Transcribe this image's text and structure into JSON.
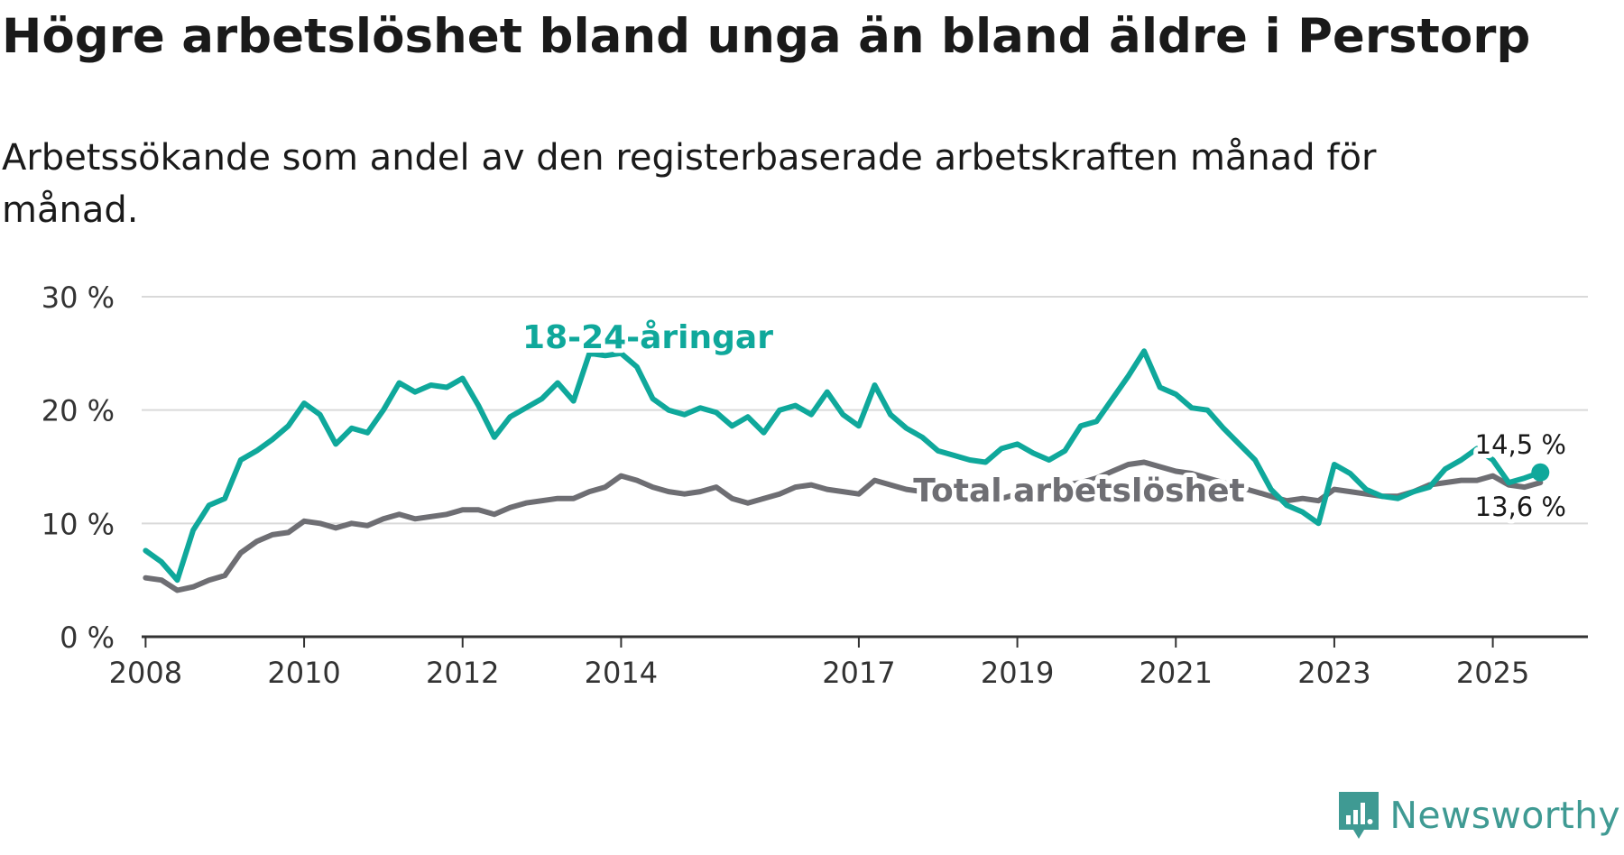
{
  "title": "Högre arbetslöshet bland unga än bland äldre i Perstorp",
  "subtitle": "Arbetssökande som andel av den registerbaserade arbetskraften månad för månad.",
  "brand": {
    "name": "Newsworthy"
  },
  "colors": {
    "youth": "#0fa89b",
    "total": "#6e6e73",
    "grid": "#d9d9d9",
    "axis": "#333333"
  },
  "chart_data": {
    "type": "line",
    "title": "Högre arbetslöshet bland unga än bland äldre i Perstorp",
    "subtitle": "Arbetssökande som andel av den registerbaserade arbetskraften månad för månad.",
    "xlabel": "",
    "ylabel": "",
    "xlim": [
      2007.95,
      2026.2
    ],
    "ylim": [
      0,
      30
    ],
    "grid": true,
    "legend": "inline labels",
    "xticks": [
      2008,
      2010,
      2012,
      2014,
      2017,
      2019,
      2021,
      2023,
      2025
    ],
    "xtick_labels": [
      "2008",
      "2010",
      "2012",
      "2014",
      "2017",
      "2019",
      "2021",
      "2023",
      "2025"
    ],
    "yticks": [
      0,
      10,
      20,
      30
    ],
    "ytick_labels": [
      "0 %",
      "10 %",
      "20 %",
      "30 %"
    ],
    "series": [
      {
        "name": "18-24-åringar",
        "key": "youth",
        "label": "18-24-åringar",
        "end_label": "14,5 %",
        "end_value": 14.5,
        "points": [
          [
            2008.0,
            7.6
          ],
          [
            2008.2,
            6.6
          ],
          [
            2008.4,
            5.0
          ],
          [
            2008.6,
            9.4
          ],
          [
            2008.8,
            11.6
          ],
          [
            2009.0,
            12.2
          ],
          [
            2009.2,
            15.6
          ],
          [
            2009.4,
            16.4
          ],
          [
            2009.6,
            17.4
          ],
          [
            2009.8,
            18.6
          ],
          [
            2010.0,
            20.6
          ],
          [
            2010.2,
            19.6
          ],
          [
            2010.4,
            17.0
          ],
          [
            2010.6,
            18.4
          ],
          [
            2010.8,
            18.0
          ],
          [
            2011.0,
            20.0
          ],
          [
            2011.2,
            22.4
          ],
          [
            2011.4,
            21.6
          ],
          [
            2011.6,
            22.2
          ],
          [
            2011.8,
            22.0
          ],
          [
            2012.0,
            22.8
          ],
          [
            2012.2,
            20.4
          ],
          [
            2012.4,
            17.6
          ],
          [
            2012.6,
            19.4
          ],
          [
            2012.8,
            20.2
          ],
          [
            2013.0,
            21.0
          ],
          [
            2013.2,
            22.4
          ],
          [
            2013.4,
            20.8
          ],
          [
            2013.6,
            25.0
          ],
          [
            2013.8,
            24.8
          ],
          [
            2014.0,
            25.0
          ],
          [
            2014.2,
            23.8
          ],
          [
            2014.4,
            21.0
          ],
          [
            2014.6,
            20.0
          ],
          [
            2014.8,
            19.6
          ],
          [
            2015.0,
            20.2
          ],
          [
            2015.2,
            19.8
          ],
          [
            2015.4,
            18.6
          ],
          [
            2015.6,
            19.4
          ],
          [
            2015.8,
            18.0
          ],
          [
            2016.0,
            20.0
          ],
          [
            2016.2,
            20.4
          ],
          [
            2016.4,
            19.6
          ],
          [
            2016.6,
            21.6
          ],
          [
            2016.8,
            19.6
          ],
          [
            2017.0,
            18.6
          ],
          [
            2017.2,
            22.2
          ],
          [
            2017.4,
            19.6
          ],
          [
            2017.6,
            18.4
          ],
          [
            2017.8,
            17.6
          ],
          [
            2018.0,
            16.4
          ],
          [
            2018.2,
            16.0
          ],
          [
            2018.4,
            15.6
          ],
          [
            2018.6,
            15.4
          ],
          [
            2018.8,
            16.6
          ],
          [
            2019.0,
            17.0
          ],
          [
            2019.2,
            16.2
          ],
          [
            2019.4,
            15.6
          ],
          [
            2019.6,
            16.4
          ],
          [
            2019.8,
            18.6
          ],
          [
            2020.0,
            19.0
          ],
          [
            2020.2,
            21.0
          ],
          [
            2020.4,
            23.0
          ],
          [
            2020.6,
            25.2
          ],
          [
            2020.8,
            22.0
          ],
          [
            2021.0,
            21.4
          ],
          [
            2021.2,
            20.2
          ],
          [
            2021.4,
            20.0
          ],
          [
            2021.6,
            18.4
          ],
          [
            2021.8,
            17.0
          ],
          [
            2022.0,
            15.6
          ],
          [
            2022.2,
            13.0
          ],
          [
            2022.4,
            11.6
          ],
          [
            2022.6,
            11.0
          ],
          [
            2022.8,
            10.0
          ],
          [
            2023.0,
            15.2
          ],
          [
            2023.2,
            14.4
          ],
          [
            2023.4,
            13.0
          ],
          [
            2023.6,
            12.4
          ],
          [
            2023.8,
            12.2
          ],
          [
            2024.0,
            12.8
          ],
          [
            2024.2,
            13.2
          ],
          [
            2024.4,
            14.8
          ],
          [
            2024.6,
            15.6
          ],
          [
            2024.8,
            16.6
          ],
          [
            2025.0,
            15.6
          ],
          [
            2025.2,
            13.6
          ],
          [
            2025.4,
            14.0
          ],
          [
            2025.6,
            14.5
          ]
        ]
      },
      {
        "name": "Total arbetslöshet",
        "key": "total",
        "label": "Total arbetslöshet",
        "end_label": "13,6 %",
        "end_value": 13.6,
        "points": [
          [
            2008.0,
            5.2
          ],
          [
            2008.2,
            5.0
          ],
          [
            2008.4,
            4.1
          ],
          [
            2008.6,
            4.4
          ],
          [
            2008.8,
            5.0
          ],
          [
            2009.0,
            5.4
          ],
          [
            2009.2,
            7.4
          ],
          [
            2009.4,
            8.4
          ],
          [
            2009.6,
            9.0
          ],
          [
            2009.8,
            9.2
          ],
          [
            2010.0,
            10.2
          ],
          [
            2010.2,
            10.0
          ],
          [
            2010.4,
            9.6
          ],
          [
            2010.6,
            10.0
          ],
          [
            2010.8,
            9.8
          ],
          [
            2011.0,
            10.4
          ],
          [
            2011.2,
            10.8
          ],
          [
            2011.4,
            10.4
          ],
          [
            2011.6,
            10.6
          ],
          [
            2011.8,
            10.8
          ],
          [
            2012.0,
            11.2
          ],
          [
            2012.2,
            11.2
          ],
          [
            2012.4,
            10.8
          ],
          [
            2012.6,
            11.4
          ],
          [
            2012.8,
            11.8
          ],
          [
            2013.0,
            12.0
          ],
          [
            2013.2,
            12.2
          ],
          [
            2013.4,
            12.2
          ],
          [
            2013.6,
            12.8
          ],
          [
            2013.8,
            13.2
          ],
          [
            2014.0,
            14.2
          ],
          [
            2014.2,
            13.8
          ],
          [
            2014.4,
            13.2
          ],
          [
            2014.6,
            12.8
          ],
          [
            2014.8,
            12.6
          ],
          [
            2015.0,
            12.8
          ],
          [
            2015.2,
            13.2
          ],
          [
            2015.4,
            12.2
          ],
          [
            2015.6,
            11.8
          ],
          [
            2015.8,
            12.2
          ],
          [
            2016.0,
            12.6
          ],
          [
            2016.2,
            13.2
          ],
          [
            2016.4,
            13.4
          ],
          [
            2016.6,
            13.0
          ],
          [
            2016.8,
            12.8
          ],
          [
            2017.0,
            12.6
          ],
          [
            2017.2,
            13.8
          ],
          [
            2017.4,
            13.4
          ],
          [
            2017.6,
            13.0
          ],
          [
            2017.8,
            12.8
          ],
          [
            2018.0,
            12.4
          ],
          [
            2018.2,
            12.2
          ],
          [
            2018.4,
            12.0
          ],
          [
            2018.6,
            12.0
          ],
          [
            2018.8,
            12.2
          ],
          [
            2019.0,
            12.6
          ],
          [
            2019.2,
            12.8
          ],
          [
            2019.4,
            13.2
          ],
          [
            2019.6,
            13.4
          ],
          [
            2019.8,
            13.6
          ],
          [
            2020.0,
            14.0
          ],
          [
            2020.2,
            14.6
          ],
          [
            2020.4,
            15.2
          ],
          [
            2020.6,
            15.4
          ],
          [
            2020.8,
            15.0
          ],
          [
            2021.0,
            14.6
          ],
          [
            2021.2,
            14.4
          ],
          [
            2021.4,
            14.0
          ],
          [
            2021.6,
            13.6
          ],
          [
            2021.8,
            13.2
          ],
          [
            2022.0,
            12.8
          ],
          [
            2022.2,
            12.4
          ],
          [
            2022.4,
            12.0
          ],
          [
            2022.6,
            12.2
          ],
          [
            2022.8,
            12.0
          ],
          [
            2023.0,
            13.0
          ],
          [
            2023.2,
            12.8
          ],
          [
            2023.4,
            12.6
          ],
          [
            2023.6,
            12.4
          ],
          [
            2023.8,
            12.4
          ],
          [
            2024.0,
            12.8
          ],
          [
            2024.2,
            13.4
          ],
          [
            2024.4,
            13.6
          ],
          [
            2024.6,
            13.8
          ],
          [
            2024.8,
            13.8
          ],
          [
            2025.0,
            14.2
          ],
          [
            2025.2,
            13.4
          ],
          [
            2025.4,
            13.2
          ],
          [
            2025.6,
            13.6
          ]
        ]
      }
    ]
  }
}
